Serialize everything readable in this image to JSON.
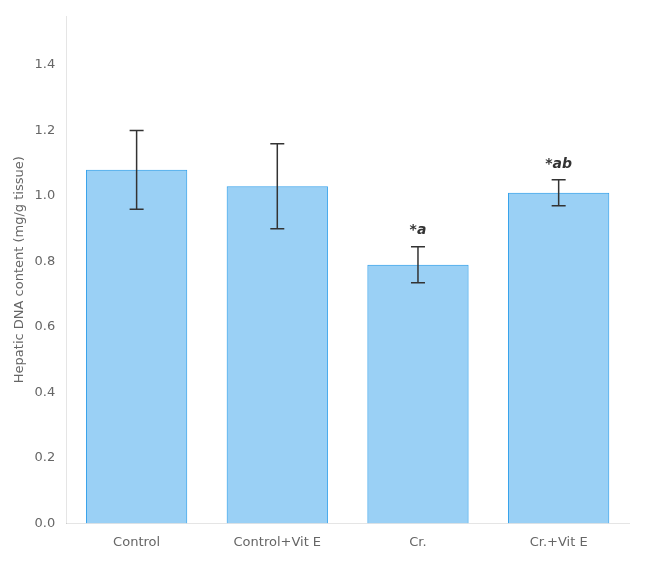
{
  "chart_data": {
    "type": "bar",
    "categories": [
      "Control",
      "Control+Vit E",
      "Cr.",
      "Cr.+Vit E"
    ],
    "values": [
      1.08,
      1.03,
      0.79,
      1.01
    ],
    "errors": [
      0.12,
      0.13,
      0.055,
      0.04
    ],
    "ylabel": "Hepatic DNA content (mg/g tissue)",
    "ylim": [
      0.0,
      1.55
    ],
    "yticks": [
      {
        "value": 0,
        "label": "0.0"
      },
      0.2,
      0.4,
      0.6,
      0.8,
      {
        "value": 1,
        "label": "1.0"
      },
      1.2,
      1.4
    ],
    "annotations": [
      {
        "text": "*a",
        "x": "Cr.",
        "y": 0.875
      },
      {
        "text": "*ab",
        "x": "Cr.+Vit E",
        "y": 1.075
      }
    ],
    "grid": false
  }
}
